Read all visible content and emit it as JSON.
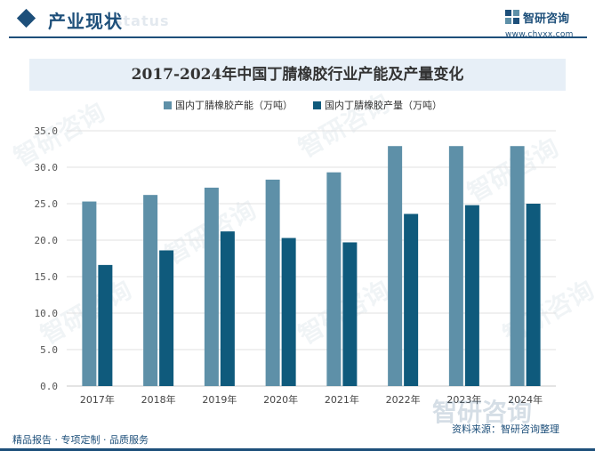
{
  "header": {
    "section_title": "产业现状",
    "ghost_text": "status",
    "logo_name": "智研咨询",
    "logo_url": "www.chyxx.com"
  },
  "watermark": "智研咨询",
  "colors": {
    "accent": "#1d4f7a",
    "capacity": "#5e90a8",
    "output": "#0f5a7c",
    "title_band": "#e7eff7",
    "grid": "#e1e1e1"
  },
  "chart_data": {
    "type": "bar",
    "title": "2017-2024年中国丁腈橡胶行业产能及产量变化",
    "categories": [
      "2017年",
      "2018年",
      "2019年",
      "2020年",
      "2021年",
      "2022年",
      "2023年",
      "2024年"
    ],
    "series": [
      {
        "name": "国内丁腈橡胶产能（万吨）",
        "values": [
          25.3,
          26.2,
          27.2,
          28.3,
          29.3,
          32.9,
          32.9,
          32.9
        ]
      },
      {
        "name": "国内丁腈橡胶产量（万吨）",
        "values": [
          16.6,
          18.6,
          21.2,
          20.3,
          19.7,
          23.6,
          24.8,
          25.0
        ]
      }
    ],
    "yticks": [
      "0.0",
      "5.0",
      "10.0",
      "15.0",
      "20.0",
      "25.0",
      "30.0",
      "35.0"
    ],
    "ylim": [
      0,
      35
    ],
    "xlabel": "",
    "ylabel": "",
    "grid": true,
    "legend": "top-center"
  },
  "footer": {
    "left": "精品报告 · 专项定制 · 品质服务",
    "right": "资料来源：智研咨询整理"
  }
}
